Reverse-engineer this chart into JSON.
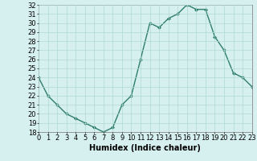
{
  "x": [
    0,
    1,
    2,
    3,
    4,
    5,
    6,
    7,
    8,
    9,
    10,
    11,
    12,
    13,
    14,
    15,
    16,
    17,
    18,
    19,
    20,
    21,
    22,
    23
  ],
  "y": [
    24,
    22,
    21,
    20,
    19.5,
    19,
    18.5,
    18,
    18.5,
    21,
    22,
    26,
    30,
    29.5,
    30.5,
    31,
    32,
    31.5,
    31.5,
    28.5,
    27,
    24.5,
    24,
    23
  ],
  "line_color": "#2e7d6e",
  "marker": "D",
  "marker_size": 2,
  "bg_color": "#d6f0ef",
  "grid_color": "#b0d8d5",
  "xlabel": "Humidex (Indice chaleur)",
  "ylim": [
    18,
    32
  ],
  "xlim": [
    0,
    23
  ],
  "yticks": [
    18,
    19,
    20,
    21,
    22,
    23,
    24,
    25,
    26,
    27,
    28,
    29,
    30,
    31,
    32
  ],
  "xticks": [
    0,
    1,
    2,
    3,
    4,
    5,
    6,
    7,
    8,
    9,
    10,
    11,
    12,
    13,
    14,
    15,
    16,
    17,
    18,
    19,
    20,
    21,
    22,
    23
  ],
  "tick_fontsize": 6,
  "xlabel_fontsize": 7,
  "linewidth": 1.0
}
